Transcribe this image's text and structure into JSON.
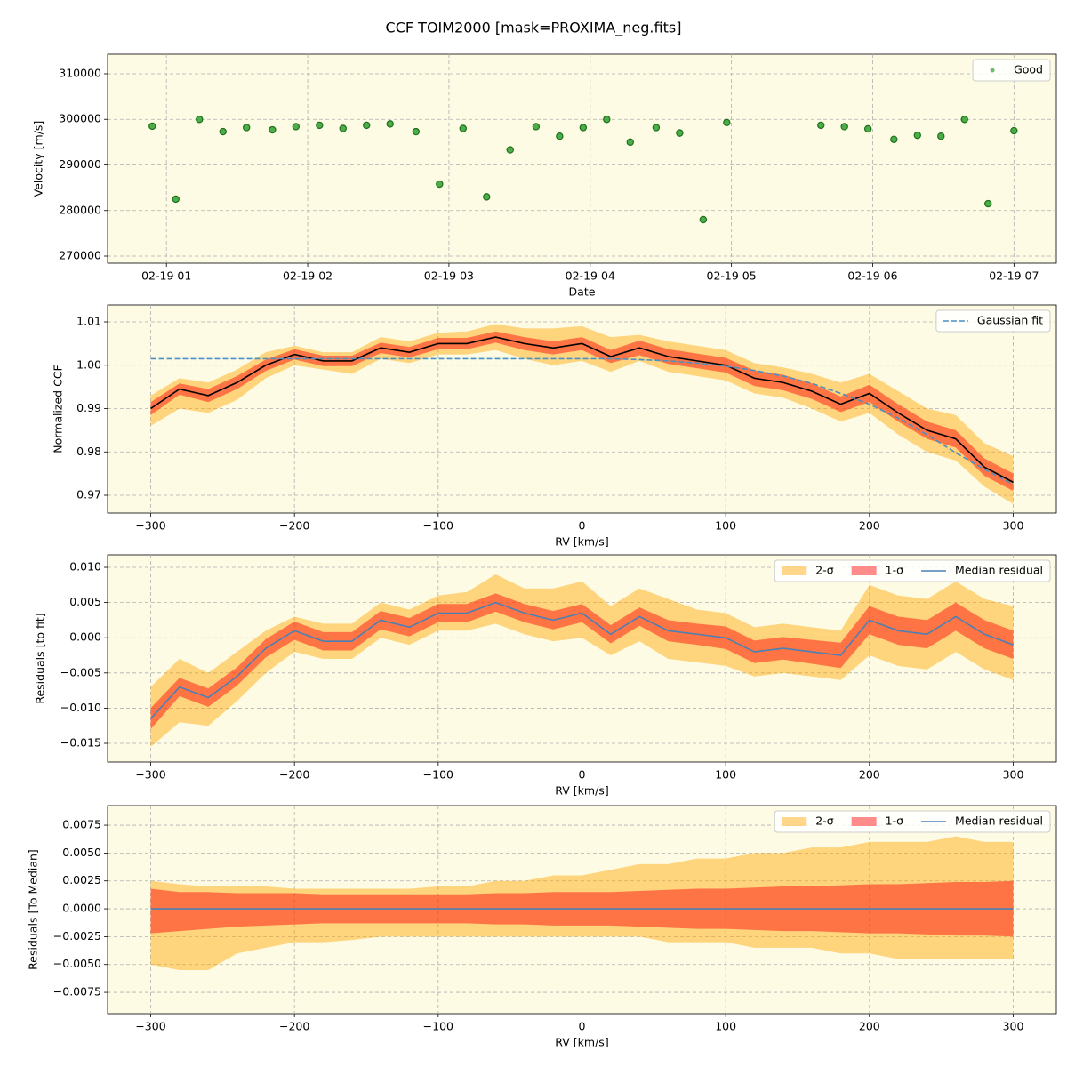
{
  "title": "CCF TOIM2000 [mask=PROXIMA_neg.fits]",
  "chart_data": [
    {
      "type": "scatter",
      "xlabel": "Date",
      "ylabel": "Velocity [m/s]",
      "x": [
        "02-19 00:54",
        "02-19 01:04",
        "02-19 01:14",
        "02-19 01:24",
        "02-19 01:34",
        "02-19 01:45",
        "02-19 01:55",
        "02-19 02:05",
        "02-19 02:15",
        "02-19 02:25",
        "02-19 02:35",
        "02-19 02:46",
        "02-19 02:56",
        "02-19 03:06",
        "02-19 03:16",
        "02-19 03:26",
        "02-19 03:37",
        "02-19 03:47",
        "02-19 03:57",
        "02-19 04:07",
        "02-19 04:17",
        "02-19 04:28",
        "02-19 04:38",
        "02-19 04:48",
        "02-19 04:58",
        "02-19 05:38",
        "02-19 05:48",
        "02-19 05:58",
        "02-19 06:09",
        "02-19 06:19",
        "02-19 06:29",
        "02-19 06:39",
        "02-19 06:49",
        "02-19 07:00"
      ],
      "series": [
        {
          "name": "Good",
          "color": "#2ca02c",
          "values": [
            298500,
            282500,
            300000,
            297300,
            298200,
            297700,
            298400,
            298700,
            298000,
            298700,
            299000,
            297300,
            285800,
            298000,
            283000,
            293300,
            298400,
            296300,
            298200,
            300000,
            295000,
            298200,
            297000,
            278000,
            299300,
            298700,
            298400,
            297900,
            295600,
            296500,
            296300,
            300000,
            281500,
            297500
          ]
        }
      ],
      "xlim": [
        "02-19 00:35",
        "02-19 07:18"
      ],
      "xticks": [
        "02-19 01",
        "02-19 02",
        "02-19 03",
        "02-19 04",
        "02-19 05",
        "02-19 06",
        "02-19 07"
      ],
      "ylim": [
        268440,
        314290
      ],
      "yticks": [
        270000,
        280000,
        290000,
        300000,
        310000
      ],
      "grid": true,
      "legend": "upper right"
    },
    {
      "type": "line",
      "xlabel": "RV [km/s]",
      "ylabel": "Normalized CCF",
      "x": [
        -300,
        -280,
        -260,
        -240,
        -220,
        -200,
        -180,
        -160,
        -140,
        -120,
        -100,
        -80,
        -60,
        -40,
        -20,
        0,
        20,
        40,
        60,
        80,
        100,
        120,
        140,
        160,
        180,
        200,
        220,
        240,
        260,
        280,
        300
      ],
      "bands": [
        {
          "color": "#ffa500",
          "lower": [
            0.986,
            0.99,
            0.989,
            0.992,
            0.997,
            1.0,
            0.999,
            0.998,
            1.0015,
            1.0005,
            1.0025,
            1.0025,
            1.0035,
            1.0015,
            1.0,
            1.001,
            0.9985,
            1.001,
            0.9985,
            0.9975,
            0.9965,
            0.9935,
            0.9925,
            0.99,
            0.987,
            0.989,
            0.984,
            0.98,
            0.978,
            0.972,
            0.968
          ],
          "upper": [
            0.993,
            0.997,
            0.996,
            0.999,
            1.003,
            1.0045,
            1.003,
            1.003,
            1.0065,
            1.0055,
            1.0075,
            1.0078,
            1.0095,
            1.0085,
            1.0085,
            1.009,
            1.0065,
            1.007,
            1.0055,
            1.0045,
            1.0035,
            1.0005,
            0.9995,
            0.998,
            0.996,
            0.998,
            0.994,
            0.99,
            0.9885,
            0.982,
            0.979
          ]
        },
        {
          "color": "#ff0000",
          "lower": [
            0.9885,
            0.9932,
            0.9915,
            0.9945,
            0.9987,
            1.0013,
            0.9998,
            0.9998,
            1.0028,
            1.0018,
            1.0037,
            1.0037,
            1.0052,
            1.0035,
            1.0025,
            1.0035,
            1.0005,
            1.0023,
            1.0003,
            0.9993,
            0.9983,
            0.9952,
            0.9942,
            0.9922,
            0.9892,
            0.9915,
            0.987,
            0.983,
            0.981,
            0.9745,
            0.971
          ],
          "upper": [
            0.9915,
            0.9958,
            0.9945,
            0.9975,
            1.0013,
            1.0037,
            1.0022,
            1.0022,
            1.0052,
            1.0042,
            1.0063,
            1.0063,
            1.0078,
            1.0065,
            1.0055,
            1.0065,
            1.0035,
            1.0057,
            1.0037,
            1.0027,
            1.0017,
            0.9988,
            0.9978,
            0.9958,
            0.9928,
            0.9955,
            0.991,
            0.987,
            0.985,
            0.9785,
            0.975
          ]
        }
      ],
      "series": [
        {
          "color": "#000000",
          "values": [
            0.99,
            0.9945,
            0.993,
            0.996,
            1.0,
            1.0025,
            1.001,
            1.001,
            1.004,
            1.003,
            1.005,
            1.005,
            1.0065,
            1.005,
            1.004,
            1.005,
            1.002,
            1.004,
            1.002,
            1.001,
            1.0,
            0.997,
            0.996,
            0.994,
            0.991,
            0.9935,
            0.989,
            0.985,
            0.983,
            0.9765,
            0.973
          ]
        },
        {
          "name": "Gaussian fit",
          "color": "#4a90c4",
          "linestyle": "dashed",
          "values": [
            1.0015,
            1.0015,
            1.0015,
            1.0015,
            1.0015,
            1.0015,
            1.0015,
            1.0015,
            1.0015,
            1.0015,
            1.0015,
            1.0015,
            1.0015,
            1.0015,
            1.0015,
            1.0015,
            1.0015,
            1.0013,
            1.001,
            1.0005,
            0.9998,
            0.9988,
            0.9975,
            0.9958,
            0.9935,
            0.991,
            0.9878,
            0.984,
            0.9798,
            0.976,
            0.9725
          ]
        }
      ],
      "xlim": [
        -330,
        330
      ],
      "xticks": [
        {
          "value": -300,
          "label": "−300"
        },
        {
          "value": -200,
          "label": "−200"
        },
        {
          "value": -100,
          "label": "−100"
        },
        0,
        100,
        200,
        300
      ],
      "ylim": [
        0.9659,
        1.0139
      ],
      "yticks": [
        0.97,
        0.98,
        0.99,
        {
          "value": 1,
          "label": "1.00"
        },
        1.01
      ],
      "grid": true,
      "legend": "upper right"
    },
    {
      "type": "line",
      "xlabel": "RV [km/s]",
      "ylabel": "Residuals [to fit]",
      "x": [
        -300,
        -280,
        -260,
        -240,
        -220,
        -200,
        -180,
        -160,
        -140,
        -120,
        -100,
        -80,
        -60,
        -40,
        -20,
        0,
        20,
        40,
        60,
        80,
        100,
        120,
        140,
        160,
        180,
        200,
        220,
        240,
        260,
        280,
        300
      ],
      "bands": [
        {
          "name": "2-σ",
          "color": "#ffa500",
          "lower": [
            -0.0155,
            -0.012,
            -0.0125,
            -0.009,
            -0.005,
            -0.002,
            -0.003,
            -0.003,
            0.0,
            -0.001,
            0.001,
            0.001,
            0.002,
            0.0005,
            -0.0005,
            0.0,
            -0.0025,
            -0.0005,
            -0.003,
            -0.0035,
            -0.004,
            -0.0055,
            -0.005,
            -0.0055,
            -0.006,
            -0.0025,
            -0.004,
            -0.0045,
            -0.002,
            -0.0045,
            -0.006
          ],
          "upper": [
            -0.007,
            -0.003,
            -0.005,
            -0.002,
            0.001,
            0.003,
            0.002,
            0.002,
            0.005,
            0.004,
            0.006,
            0.0065,
            0.009,
            0.007,
            0.007,
            0.008,
            0.0045,
            0.007,
            0.0055,
            0.004,
            0.0035,
            0.0015,
            0.002,
            0.0015,
            0.001,
            0.0075,
            0.006,
            0.0055,
            0.008,
            0.0055,
            0.0045
          ]
        },
        {
          "name": "1-σ",
          "color": "#ff0000",
          "lower": [
            -0.013,
            -0.0083,
            -0.0098,
            -0.0068,
            -0.0028,
            -0.0003,
            -0.0018,
            -0.0018,
            0.0012,
            0.0002,
            0.0022,
            0.0022,
            0.0037,
            0.0022,
            0.0012,
            0.0022,
            -0.0008,
            0.0017,
            -0.0005,
            -0.001,
            -0.0016,
            -0.0036,
            -0.0031,
            -0.0037,
            -0.0043,
            0.0005,
            -0.001,
            -0.0015,
            0.001,
            -0.0015,
            -0.003
          ],
          "upper": [
            -0.01,
            -0.0057,
            -0.0072,
            -0.0042,
            -0.0002,
            0.0023,
            0.0008,
            0.0008,
            0.0038,
            0.0028,
            0.0048,
            0.0048,
            0.0063,
            0.0048,
            0.0038,
            0.0048,
            0.0018,
            0.0043,
            0.0025,
            0.002,
            0.0016,
            -0.0004,
            0.0001,
            -0.0003,
            -0.0007,
            0.0045,
            0.003,
            0.0025,
            0.005,
            0.0025,
            0.001
          ]
        }
      ],
      "series": [
        {
          "name": "Median residual",
          "color": "#4a80b5",
          "values": [
            -0.0115,
            -0.007,
            -0.0085,
            -0.0055,
            -0.0015,
            0.001,
            -0.0005,
            -0.0005,
            0.0025,
            0.0015,
            0.0035,
            0.0035,
            0.005,
            0.0035,
            0.0025,
            0.0035,
            0.0005,
            0.003,
            0.001,
            0.0005,
            0.0,
            -0.002,
            -0.0015,
            -0.002,
            -0.0025,
            0.0025,
            0.001,
            0.0005,
            0.003,
            0.0005,
            -0.001
          ]
        }
      ],
      "xlim": [
        -330,
        330
      ],
      "xticks": [
        {
          "value": -300,
          "label": "−300"
        },
        {
          "value": -200,
          "label": "−200"
        },
        {
          "value": -100,
          "label": "−100"
        },
        0,
        100,
        200,
        300
      ],
      "ylim": [
        -0.01765,
        0.01177
      ],
      "yticks": [
        {
          "value": -0.015,
          "label": "−0.015"
        },
        {
          "value": -0.01,
          "label": "−0.010"
        },
        {
          "value": -0.005,
          "label": "−0.005"
        },
        {
          "value": 0,
          "label": "0.000"
        },
        0.005,
        {
          "value": 0.01,
          "label": "0.010"
        }
      ],
      "grid": true,
      "legend": "upper right"
    },
    {
      "type": "line",
      "xlabel": "RV [km/s]",
      "ylabel": "Residuals [To Median]",
      "x": [
        -300,
        -280,
        -260,
        -240,
        -220,
        -200,
        -180,
        -160,
        -140,
        -120,
        -100,
        -80,
        -60,
        -40,
        -20,
        0,
        20,
        40,
        60,
        80,
        100,
        120,
        140,
        160,
        180,
        200,
        220,
        240,
        260,
        280,
        300
      ],
      "bands": [
        {
          "name": "2-σ",
          "color": "#ffa500",
          "lower": [
            -0.005,
            -0.0055,
            -0.0055,
            -0.004,
            -0.0035,
            -0.003,
            -0.003,
            -0.0028,
            -0.0025,
            -0.0025,
            -0.0025,
            -0.0025,
            -0.0025,
            -0.0025,
            -0.0025,
            -0.0025,
            -0.0025,
            -0.0025,
            -0.003,
            -0.003,
            -0.003,
            -0.0035,
            -0.0035,
            -0.0035,
            -0.004,
            -0.004,
            -0.0045,
            -0.0045,
            -0.0045,
            -0.0045,
            -0.0045
          ],
          "upper": [
            0.0025,
            0.0022,
            0.002,
            0.002,
            0.002,
            0.0018,
            0.0018,
            0.0018,
            0.0018,
            0.0018,
            0.002,
            0.002,
            0.0025,
            0.0025,
            0.003,
            0.003,
            0.0035,
            0.004,
            0.004,
            0.0045,
            0.0045,
            0.005,
            0.005,
            0.0055,
            0.0055,
            0.006,
            0.006,
            0.006,
            0.0065,
            0.006,
            0.006
          ]
        },
        {
          "name": "1-σ",
          "color": "#ff0000",
          "lower": [
            -0.0022,
            -0.002,
            -0.0018,
            -0.0016,
            -0.0015,
            -0.0014,
            -0.0013,
            -0.0013,
            -0.0013,
            -0.0013,
            -0.0013,
            -0.0013,
            -0.0014,
            -0.0014,
            -0.0015,
            -0.0015,
            -0.0015,
            -0.0016,
            -0.0017,
            -0.0018,
            -0.0018,
            -0.0019,
            -0.002,
            -0.002,
            -0.0021,
            -0.0022,
            -0.0022,
            -0.0023,
            -0.0024,
            -0.0024,
            -0.0025
          ],
          "upper": [
            0.0018,
            0.0015,
            0.0015,
            0.0014,
            0.0014,
            0.0014,
            0.0013,
            0.0013,
            0.0013,
            0.0013,
            0.0013,
            0.0013,
            0.0014,
            0.0014,
            0.0015,
            0.0015,
            0.0015,
            0.0016,
            0.0017,
            0.0018,
            0.0018,
            0.0019,
            0.002,
            0.002,
            0.0021,
            0.0022,
            0.0022,
            0.0023,
            0.0024,
            0.0024,
            0.0025
          ]
        }
      ],
      "series": [
        {
          "name": "Median residual",
          "color": "#4a80b5",
          "values": [
            0,
            0,
            0,
            0,
            0,
            0,
            0,
            0,
            0,
            0,
            0,
            0,
            0,
            0,
            0,
            0,
            0,
            0,
            0,
            0,
            0,
            0,
            0,
            0,
            0,
            0,
            0,
            0,
            0,
            0,
            0
          ]
        }
      ],
      "xlim": [
        -330,
        330
      ],
      "xticks": [
        {
          "value": -300,
          "label": "−300"
        },
        {
          "value": -200,
          "label": "−200"
        },
        {
          "value": -100,
          "label": "−100"
        },
        0,
        100,
        200,
        300
      ],
      "ylim": [
        -0.00941,
        0.00926
      ],
      "yticks": [
        {
          "value": -0.0075,
          "label": "−0.0075"
        },
        {
          "value": -0.005,
          "label": "−0.0050"
        },
        {
          "value": -0.0025,
          "label": "−0.0025"
        },
        {
          "value": 0,
          "label": "0.0000"
        },
        0.0025,
        {
          "value": 0.005,
          "label": "0.0050"
        },
        0.0075
      ],
      "grid": true,
      "legend": "upper right"
    }
  ]
}
